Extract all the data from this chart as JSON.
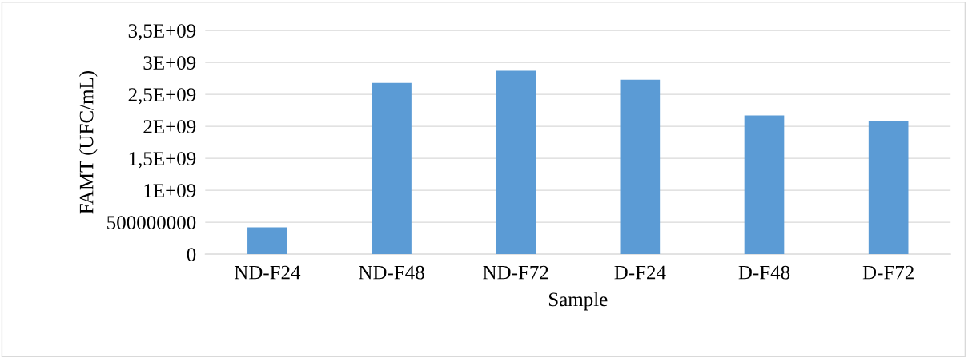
{
  "chart_data": {
    "type": "bar",
    "xlabel": "Sample",
    "ylabel": "FAMT (UFC/mL)",
    "categories": [
      "ND-F24",
      "ND-F48",
      "ND-F72",
      "D-F24",
      "D-F48",
      "D-F72"
    ],
    "values": [
      420000000,
      2680000000,
      2870000000,
      2730000000,
      2170000000,
      2080000000
    ],
    "color": "#5b9bd5",
    "ylim": [
      0,
      3500000000
    ],
    "yticks": [
      0,
      {
        "value": 500000000,
        "label": "500000000"
      },
      {
        "value": 1000000000,
        "label": "1E+09"
      },
      {
        "value": 1500000000,
        "label": "1,5E+09"
      },
      {
        "value": 2000000000,
        "label": "2E+09"
      },
      {
        "value": 2500000000,
        "label": "2,5E+09"
      },
      {
        "value": 3000000000,
        "label": "3E+09"
      },
      {
        "value": 3500000000,
        "label": "3,5E+09"
      }
    ],
    "grid": "y",
    "legend": false
  }
}
